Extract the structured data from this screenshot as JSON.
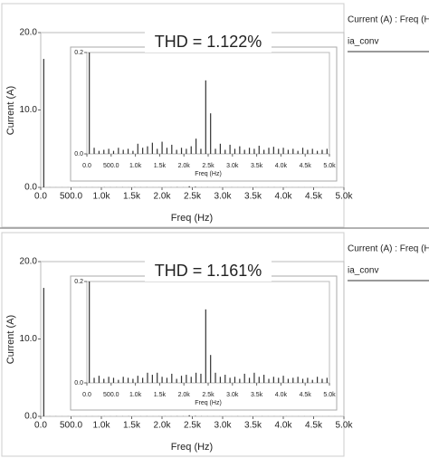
{
  "chart_data": [
    {
      "type": "bar",
      "title": "THD = 1.122%",
      "xlabel": "Freq (Hz)",
      "ylabel": "Current (A)",
      "legend_title": "Current (A) : Freq (Hz)",
      "x": [
        50,
        150,
        250,
        350,
        450,
        550,
        650,
        750,
        850,
        950,
        1050,
        1150,
        1250,
        1350,
        1450,
        1550,
        1650,
        1750,
        1850,
        1950,
        2050,
        2150,
        2250,
        2350,
        2450,
        2550,
        2650,
        2750,
        2850,
        2950,
        3050,
        3150,
        3250,
        3350,
        3450,
        3550,
        3650,
        3750,
        3850,
        3950,
        4050,
        4150,
        4250,
        4350,
        4450,
        4550,
        4650,
        4750,
        4850,
        4950
      ],
      "series": [
        {
          "name": "ia_conv",
          "color": "#333333",
          "values": [
            16.6,
            0.012,
            0.006,
            0.008,
            0.01,
            0.006,
            0.012,
            0.008,
            0.01,
            0.006,
            0.02,
            0.012,
            0.015,
            0.022,
            0.01,
            0.024,
            0.012,
            0.018,
            0.008,
            0.012,
            0.01,
            0.015,
            0.03,
            0.01,
            0.145,
            0.08,
            0.01,
            0.02,
            0.008,
            0.018,
            0.01,
            0.015,
            0.008,
            0.012,
            0.01,
            0.016,
            0.008,
            0.012,
            0.014,
            0.01,
            0.012,
            0.008,
            0.01,
            0.006,
            0.012,
            0.008,
            0.01,
            0.006,
            0.008,
            0.01
          ]
        }
      ],
      "xlim": [
        0,
        5000
      ],
      "xticks": [
        {
          "value": 0,
          "label": "0.0"
        },
        {
          "value": 500,
          "label": "500.0"
        },
        {
          "value": 1000,
          "label": "1.0k"
        },
        {
          "value": 1500,
          "label": "1.5k"
        },
        {
          "value": 2000,
          "label": "2.0k"
        },
        {
          "value": 2500,
          "label": "2.5k"
        },
        {
          "value": 3000,
          "label": "3.0k"
        },
        {
          "value": 3500,
          "label": "3.5k"
        },
        {
          "value": 4000,
          "label": "4.0k"
        },
        {
          "value": 4500,
          "label": "4.5k"
        },
        {
          "value": 5000,
          "label": "5.0k"
        }
      ],
      "ylim": [
        0,
        20
      ],
      "yticks": [
        {
          "value": 0,
          "label": "0.0"
        },
        {
          "value": 10,
          "label": "10.0"
        },
        {
          "value": 20,
          "label": "20.0"
        }
      ],
      "inset": {
        "xlabel": "Freq (Hz)",
        "xlim": [
          0,
          5000
        ],
        "xticks": [
          {
            "value": 0,
            "label": "0.0"
          },
          {
            "value": 500,
            "label": "500.0"
          },
          {
            "value": 1000,
            "label": "1.0k"
          },
          {
            "value": 1500,
            "label": "1.5k"
          },
          {
            "value": 2000,
            "label": "2.0k"
          },
          {
            "value": 2500,
            "label": "2.5k"
          },
          {
            "value": 3000,
            "label": "3.0k"
          },
          {
            "value": 3500,
            "label": "3.5k"
          },
          {
            "value": 4000,
            "label": "4.0k"
          },
          {
            "value": 4500,
            "label": "4.5k"
          },
          {
            "value": 5000,
            "label": "5.0k"
          }
        ],
        "ylim": [
          0,
          0.2
        ],
        "yticks": [
          {
            "value": 0,
            "label": "0.0"
          },
          0.2
        ]
      }
    },
    {
      "type": "bar",
      "title": "THD = 1.161%",
      "xlabel": "Freq (Hz)",
      "ylabel": "Current (A)",
      "legend_title": "Current (A) : Freq (Hz)",
      "x": [
        50,
        150,
        250,
        350,
        450,
        550,
        650,
        750,
        850,
        950,
        1050,
        1150,
        1250,
        1350,
        1450,
        1550,
        1650,
        1750,
        1850,
        1950,
        2050,
        2150,
        2250,
        2350,
        2450,
        2550,
        2650,
        2750,
        2850,
        2950,
        3050,
        3150,
        3250,
        3350,
        3450,
        3550,
        3650,
        3750,
        3850,
        3950,
        4050,
        4150,
        4250,
        4350,
        4450,
        4550,
        4650,
        4750,
        4850,
        4950
      ],
      "series": [
        {
          "name": "ia_conv",
          "color": "#333333",
          "values": [
            16.6,
            0.01,
            0.014,
            0.008,
            0.012,
            0.01,
            0.006,
            0.012,
            0.01,
            0.008,
            0.014,
            0.01,
            0.02,
            0.016,
            0.02,
            0.012,
            0.01,
            0.018,
            0.008,
            0.014,
            0.016,
            0.012,
            0.02,
            0.018,
            0.145,
            0.055,
            0.02,
            0.012,
            0.016,
            0.01,
            0.012,
            0.008,
            0.018,
            0.01,
            0.02,
            0.012,
            0.016,
            0.008,
            0.012,
            0.01,
            0.014,
            0.008,
            0.01,
            0.012,
            0.008,
            0.01,
            0.006,
            0.012,
            0.008,
            0.01
          ]
        }
      ],
      "xlim": [
        0,
        5000
      ],
      "xticks": [
        {
          "value": 0,
          "label": "0.0"
        },
        {
          "value": 500,
          "label": "500.0"
        },
        {
          "value": 1000,
          "label": "1.0k"
        },
        {
          "value": 1500,
          "label": "1.5k"
        },
        {
          "value": 2000,
          "label": "2.0k"
        },
        {
          "value": 2500,
          "label": "2.5k"
        },
        {
          "value": 3000,
          "label": "3.0k"
        },
        {
          "value": 3500,
          "label": "3.5k"
        },
        {
          "value": 4000,
          "label": "4.0k"
        },
        {
          "value": 4500,
          "label": "4.5k"
        },
        {
          "value": 5000,
          "label": "5.0k"
        }
      ],
      "ylim": [
        0,
        20
      ],
      "yticks": [
        {
          "value": 0,
          "label": "0.0"
        },
        {
          "value": 10,
          "label": "10.0"
        },
        {
          "value": 20,
          "label": "20.0"
        }
      ],
      "inset": {
        "xlabel": "Freq (Hz)",
        "xlim": [
          0,
          5000
        ],
        "xticks": [
          {
            "value": 0,
            "label": "0.0"
          },
          {
            "value": 500,
            "label": "500.0"
          },
          {
            "value": 1000,
            "label": "1.0k"
          },
          {
            "value": 1500,
            "label": "1.5k"
          },
          {
            "value": 2000,
            "label": "2.0k"
          },
          {
            "value": 2500,
            "label": "2.5k"
          },
          {
            "value": 3000,
            "label": "3.0k"
          },
          {
            "value": 3500,
            "label": "3.5k"
          },
          {
            "value": 4000,
            "label": "4.0k"
          },
          {
            "value": 4500,
            "label": "4.5k"
          },
          {
            "value": 5000,
            "label": "5.0k"
          }
        ],
        "ylim": [
          0,
          0.2
        ],
        "yticks": [
          {
            "value": 0,
            "label": "0.0"
          },
          0.2
        ]
      }
    }
  ]
}
